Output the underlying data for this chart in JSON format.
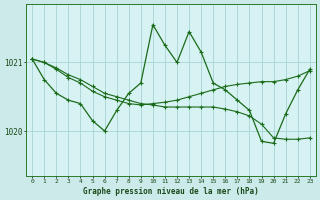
{
  "xlabel": "Graphe pression niveau de la mer (hPa)",
  "bg_color": "#cceaea",
  "grid_color": "#aad4d4",
  "line_color": "#1a6b1a",
  "plot_bg": "#d6f2f2",
  "yticks": [
    1020,
    1021
  ],
  "xticks": [
    0,
    1,
    2,
    3,
    4,
    5,
    6,
    7,
    8,
    9,
    10,
    11,
    12,
    13,
    14,
    15,
    16,
    17,
    18,
    19,
    20,
    21,
    22,
    23
  ],
  "ylim": [
    1019.35,
    1021.85
  ],
  "xlim": [
    -0.5,
    23.5
  ],
  "line_spiky": {
    "x": [
      0,
      1,
      2,
      3,
      4,
      5,
      6,
      7,
      8,
      9,
      10,
      11,
      12,
      13,
      14,
      15,
      16,
      17,
      18,
      19,
      20,
      21,
      22,
      23
    ],
    "y": [
      1021.05,
      1020.75,
      1020.55,
      1020.45,
      1020.4,
      1020.15,
      1020.0,
      1020.3,
      1020.55,
      1020.7,
      1021.55,
      1021.25,
      1021.0,
      1021.45,
      1021.15,
      1020.7,
      1020.6,
      1020.45,
      1020.3,
      1019.85,
      1019.82,
      1020.25,
      1020.6,
      1020.9
    ]
  },
  "line_smooth1": {
    "x": [
      0,
      1,
      2,
      3,
      4,
      5,
      6,
      7,
      8,
      9,
      10,
      11,
      12,
      13,
      14,
      15,
      16,
      17,
      18,
      19,
      20,
      21,
      22,
      23
    ],
    "y": [
      1021.05,
      1021.0,
      1020.92,
      1020.82,
      1020.75,
      1020.65,
      1020.55,
      1020.5,
      1020.45,
      1020.4,
      1020.38,
      1020.35,
      1020.35,
      1020.35,
      1020.35,
      1020.35,
      1020.32,
      1020.28,
      1020.22,
      1020.1,
      1019.9,
      1019.88,
      1019.88,
      1019.9
    ]
  },
  "line_smooth2": {
    "x": [
      0,
      1,
      2,
      3,
      4,
      5,
      6,
      7,
      8,
      9,
      10,
      11,
      12,
      13,
      14,
      15,
      16,
      17,
      18,
      19,
      20,
      21,
      22,
      23
    ],
    "y": [
      1021.05,
      1021.0,
      1020.9,
      1020.78,
      1020.7,
      1020.58,
      1020.5,
      1020.45,
      1020.4,
      1020.38,
      1020.4,
      1020.42,
      1020.45,
      1020.5,
      1020.55,
      1020.6,
      1020.65,
      1020.68,
      1020.7,
      1020.72,
      1020.72,
      1020.75,
      1020.8,
      1020.88
    ]
  }
}
